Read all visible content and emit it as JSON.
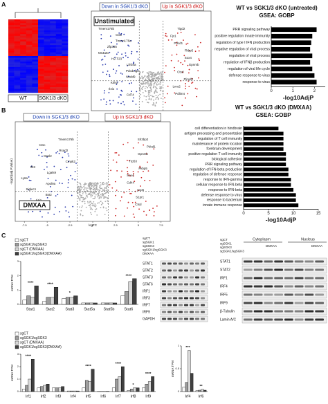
{
  "panels": {
    "a": "A",
    "b": "B",
    "c": "C"
  },
  "heatmap": {
    "groups": [
      "WT",
      "SGK1/3 dKO"
    ]
  },
  "volcano_a": {
    "down_label": "Down in SGK1/3 dKO",
    "up_label": "Up in SGK1/3 dKO",
    "condition": "Unstimulated",
    "x_label": "logFC",
    "genes_down": [
      "Tmem176b",
      "Ctsc",
      "Tmem176a",
      "Zfp365",
      "Ms4a6c",
      "H2-T23",
      "Lilrb4a",
      "Pdcd1lg2",
      "Nedd9",
      "Klrk1",
      "Il4i1",
      "Cd74"
    ],
    "genes_up": [
      "Tigd2",
      "Fjx1",
      "Pdcd1",
      "Fkbp5",
      "Sox4",
      "Gpnmb",
      "Ctsd",
      "Plcxd2",
      "Lmo2",
      "Pdlim4"
    ]
  },
  "gsea_a": {
    "title": "WT vs SGK1/3 dKO (untreated)",
    "subtitle": "GSEA: GOBP",
    "terms": [
      "PRR signaling pathway",
      "positive regulation innate immunity",
      "regulation of type I IFN production",
      "negative regulation of viral process",
      "regulation of viral process",
      "regulation of IFNβ production",
      "regulation of viral life cycle",
      "defense response to virus",
      "response to virus"
    ],
    "values": [
      2.1,
      1.9,
      1.85,
      1.8,
      1.9,
      1.8,
      1.9,
      2.0,
      2.1
    ],
    "xlim": [
      0,
      2.5
    ],
    "xticks": [
      0,
      1,
      2
    ],
    "x_label": "-log10AdjP",
    "color": "#000000"
  },
  "volcano_b": {
    "down_label": "Down in SGK1/3 dKO",
    "up_label": "Up in SGK1/3 dKO",
    "condition": "DMXAA",
    "x_label": "logFC",
    "y_label": "-log10(adj.P.Value)",
    "xlim": [
      -8.5,
      8.5
    ],
    "xticks": [
      -7.5,
      -5.0,
      -2.5,
      0.0,
      2.5,
      5.0,
      7.5
    ],
    "genes_down": [
      "Tmem176b",
      "Ctsc",
      "Rsad2",
      "Oasl2",
      "Cmpk2",
      "Ifit3",
      "Lgals9",
      "Ly6a",
      "Apol9a",
      "Siglec1",
      "Bst2",
      "Il4i1",
      "Cd74"
    ],
    "genes_up": [
      "Sh3bp2",
      "Pdcd1",
      "Gpnmb",
      "Trp53",
      "Fkbp5",
      "Sox4",
      "Cd44",
      "Acp5",
      "S1pr1",
      "Ctsd"
    ]
  },
  "gsea_b": {
    "title": "WT vs SGK1/3 dKO (DMXAA)",
    "subtitle": "GSEA: GOBP",
    "terms": [
      "cell differentiation in hindbrain",
      "antigen processing and presentation",
      "regulation of T cell immunity",
      "maintenance of protein location",
      "forebrain development",
      "positive regulation T cell immunity",
      "biological adhesion",
      "PRR signaling pathway",
      "regulation of IFN-beta production",
      "regulation of defense response",
      "response to IFN-gamma",
      "cellular response to IFN-beta",
      "response to IFN-beta",
      "defense response to virus",
      "response to bacterium",
      "innate immune response"
    ],
    "values": [
      7,
      8,
      8,
      8,
      8,
      8.5,
      8.5,
      8.5,
      9,
      9,
      9.5,
      9.5,
      10,
      10.5,
      10.5,
      11
    ],
    "xlim": [
      0,
      15
    ],
    "xticks": [
      0,
      5,
      10,
      15
    ],
    "x_label": "-log10AdjP",
    "color": "#000000"
  },
  "stat_chart": {
    "y_label": "mRNA TPM",
    "categories": [
      "Stat1",
      "Stat2",
      "Stat3",
      "Stat5a",
      "Stat5b",
      "Stat6"
    ],
    "ylim": [
      0,
      3
    ],
    "yticks": [
      0,
      1,
      2,
      3
    ],
    "series": [
      {
        "name": "sgCT",
        "color": "#ffffff",
        "values": [
          0.3,
          0.2,
          0.4,
          0.1,
          0.1,
          0.6
        ]
      },
      {
        "name": "sgSGK1/sgSGK3",
        "color": "#9e9e9e",
        "values": [
          0.6,
          0.5,
          0.5,
          0.1,
          0.1,
          0.9
        ]
      },
      {
        "name": "sgCT (DMXAA)",
        "color": "#d9d9d9",
        "values": [
          0.5,
          0.5,
          0.5,
          0.1,
          0.1,
          1.6
        ]
      },
      {
        "name": "sgSGK1/sgSGK3(DMXAA)",
        "color": "#404040",
        "values": [
          1.3,
          1.2,
          0.6,
          0.1,
          0.1,
          1.8
        ]
      }
    ],
    "significance": [
      "****",
      "****",
      "*",
      null,
      null,
      "****"
    ]
  },
  "irf_chart": {
    "y_label": "mRNA TPM",
    "categories": [
      "Irf1",
      "Irf2",
      "Irf3",
      "Irf4",
      "Irf5",
      "Irf6",
      "Irf7",
      "Irf8",
      "Irf9"
    ],
    "ylim": [
      0,
      3
    ],
    "yticks": [
      0,
      1,
      2,
      3
    ],
    "series": [
      {
        "name": "sgCT",
        "color": "#ffffff",
        "values": [
          0.2,
          0.3,
          0.3,
          0.05,
          0.3,
          0.01,
          0.3,
          0.1,
          0.3
        ]
      },
      {
        "name": "sgSGK1/sgSGK3",
        "color": "#9e9e9e",
        "values": [
          0.5,
          0.4,
          0.3,
          0.05,
          0.9,
          0.01,
          1.0,
          0.2,
          0.6
        ]
      },
      {
        "name": "sgCT (DMXAA)",
        "color": "#d9d9d9",
        "values": [
          1.0,
          0.5,
          0.3,
          0.05,
          0.8,
          0.01,
          1.2,
          0.3,
          0.8
        ]
      },
      {
        "name": "sgSGK1/sgSGK3(DMXAA)",
        "color": "#404040",
        "values": [
          2.6,
          0.6,
          0.4,
          0.05,
          1.8,
          0.02,
          2.0,
          0.3,
          1.2
        ]
      }
    ],
    "significance": [
      "****",
      null,
      null,
      null,
      "****",
      null,
      "****",
      "*",
      "****"
    ]
  },
  "small_chart": {
    "y_label": "mRNA TPM",
    "categories": [
      "Irf4",
      "Irf6"
    ],
    "ylim": [
      0,
      1
    ],
    "yticks": [
      0,
      0.5,
      1
    ],
    "series": [
      {
        "name": "sgCT",
        "color": "#ffffff",
        "values": [
          0.1,
          0.02
        ]
      },
      {
        "name": "sgSGK1/sgSGK3",
        "color": "#9e9e9e",
        "values": [
          0.2,
          0.03
        ]
      },
      {
        "name": "sgCT (DMXAA)",
        "color": "#d9d9d9",
        "values": [
          0.9,
          0.05
        ]
      },
      {
        "name": "sgSGK1/sgSGK3(DMXAA)",
        "color": "#404040",
        "values": [
          0.4,
          0.03
        ]
      }
    ],
    "significance": [
      "***",
      "**"
    ]
  },
  "blot_1": {
    "header": [
      "sgCT",
      "sgSGK1",
      "sgSGK3",
      "sgSGK1/sgSGK3",
      "DMXAA"
    ],
    "rows": [
      "STAT1",
      "STAT2",
      "STAT3",
      "STAT6",
      "IRF1",
      "IRF3",
      "IRF7",
      "IRF9",
      "GAPDH"
    ]
  },
  "blot_2": {
    "header": [
      "sgCT",
      "sgSGK1",
      "sgSGK3",
      "sgSGK1/sgSGK3"
    ],
    "fractions": [
      "Cytoplasm",
      "Nucleus"
    ],
    "treatment": "DMXAA",
    "rows": [
      "STAT1",
      "STAT2",
      "IRF1",
      "IRF4",
      "IRF5",
      "IRF9",
      "β-Tubulin",
      "Lamin A/C"
    ]
  }
}
